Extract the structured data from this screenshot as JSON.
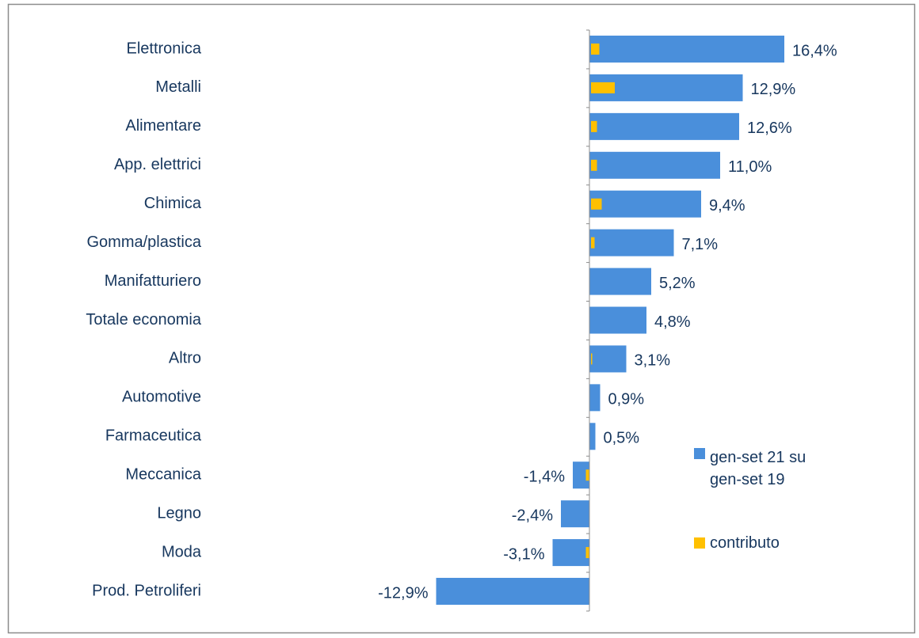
{
  "chart_data": {
    "type": "hbar",
    "categories": [
      "Elettronica",
      "Metalli",
      "Alimentare",
      "App. elettrici",
      "Chimica",
      "Gomma/plastica",
      "Manifatturiero",
      "Totale economia",
      "Altro",
      "Automotive",
      "Farmaceutica",
      "Meccanica",
      "Legno",
      "Moda",
      "Prod. Petroliferi"
    ],
    "series": [
      {
        "name": "gen-set 21 su gen-set 19",
        "color": "#4a8fdb",
        "values": [
          16.4,
          12.9,
          12.6,
          11.0,
          9.4,
          7.1,
          5.2,
          4.8,
          3.1,
          0.9,
          0.5,
          -1.4,
          -2.4,
          -3.1,
          -12.9
        ],
        "value_labels": [
          "16,4%",
          "12,9%",
          "12,6%",
          "11,0%",
          "9,4%",
          "7,1%",
          "5,2%",
          "4,8%",
          "3,1%",
          "0,9%",
          "0,5%",
          "-1,4%",
          "-2,4%",
          "-3,1%",
          "-12,9%"
        ]
      },
      {
        "name": "contributo",
        "color": "#ffc000",
        "values": [
          0.7,
          2.0,
          0.5,
          0.5,
          0.9,
          0.3,
          null,
          null,
          0.1,
          0,
          0,
          -0.3,
          0,
          -0.3,
          0
        ]
      }
    ],
    "xlim": [
      -13,
      17
    ],
    "legend": "right"
  }
}
